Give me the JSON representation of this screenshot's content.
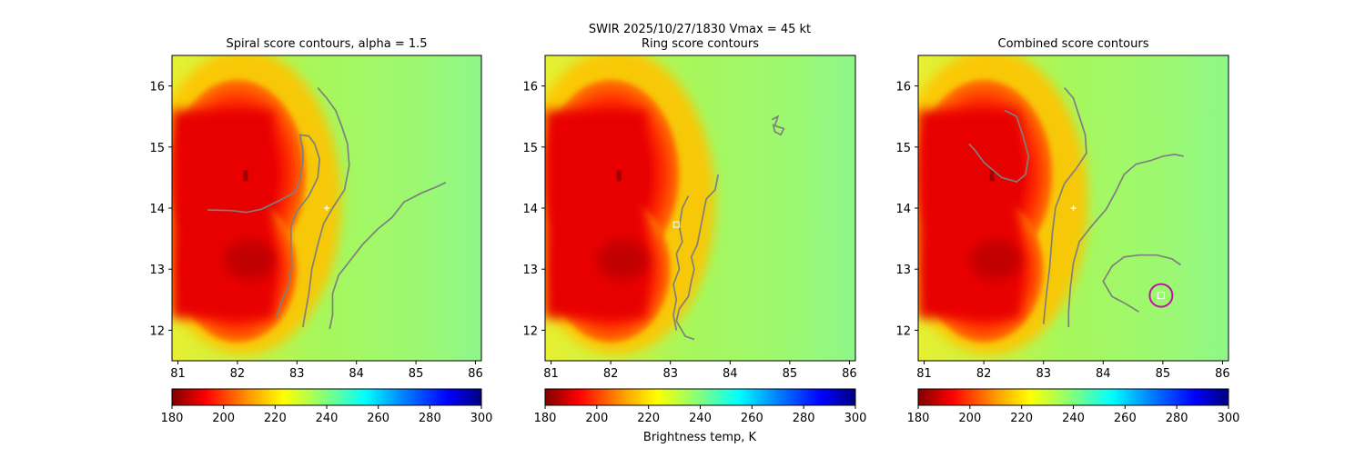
{
  "figure": {
    "suptitle_line": "SWIR  2025/10/27/1830    Vmax = 45 kt",
    "colorbar_label": "Brightness temp, K"
  },
  "chart_data": [
    {
      "type": "heatmap",
      "title": "Spiral score contours, alpha =  1.5",
      "xlim": [
        80.9,
        86.1
      ],
      "ylim": [
        11.5,
        16.5
      ],
      "xticks": [
        81,
        82,
        83,
        84,
        85,
        86
      ],
      "yticks": [
        12,
        13,
        14,
        15,
        16
      ],
      "center_marker": {
        "x": 83.5,
        "y": 14.0,
        "symbol": "+"
      },
      "contours": [
        [
          [
            81.5,
            13.97
          ],
          [
            81.9,
            13.96
          ],
          [
            82.15,
            13.93
          ],
          [
            82.4,
            13.98
          ],
          [
            82.7,
            14.12
          ],
          [
            82.95,
            14.25
          ],
          [
            83.05,
            14.45
          ],
          [
            83.1,
            14.75
          ],
          [
            83.1,
            14.95
          ],
          [
            83.05,
            15.2
          ],
          [
            83.2,
            15.18
          ],
          [
            83.3,
            15.05
          ],
          [
            83.38,
            14.8
          ],
          [
            83.35,
            14.5
          ],
          [
            83.2,
            14.2
          ],
          [
            83.0,
            13.95
          ],
          [
            82.9,
            13.7
          ],
          [
            82.9,
            13.4
          ],
          [
            82.9,
            13.0
          ],
          [
            82.85,
            12.7
          ],
          [
            82.75,
            12.5
          ],
          [
            82.65,
            12.2
          ]
        ],
        [
          [
            83.35,
            15.97
          ],
          [
            83.5,
            15.8
          ],
          [
            83.65,
            15.6
          ],
          [
            83.75,
            15.35
          ],
          [
            83.85,
            15.05
          ],
          [
            83.88,
            14.7
          ],
          [
            83.8,
            14.3
          ],
          [
            83.6,
            14.0
          ],
          [
            83.45,
            13.75
          ],
          [
            83.35,
            13.4
          ],
          [
            83.25,
            13.0
          ],
          [
            83.2,
            12.6
          ],
          [
            83.1,
            12.05
          ]
        ],
        [
          [
            85.5,
            14.42
          ],
          [
            85.35,
            14.35
          ],
          [
            85.1,
            14.25
          ],
          [
            84.8,
            14.1
          ],
          [
            84.6,
            13.85
          ],
          [
            84.35,
            13.65
          ],
          [
            84.1,
            13.4
          ],
          [
            83.9,
            13.15
          ],
          [
            83.7,
            12.9
          ],
          [
            83.6,
            12.6
          ],
          [
            83.6,
            12.25
          ],
          [
            83.55,
            12.02
          ]
        ]
      ]
    },
    {
      "type": "heatmap",
      "title": "Ring score contours",
      "xlim": [
        80.9,
        86.1
      ],
      "ylim": [
        11.5,
        16.5
      ],
      "xticks": [
        81,
        82,
        83,
        84,
        85,
        86
      ],
      "yticks": [
        12,
        13,
        14,
        15,
        16
      ],
      "center_marker": {
        "x": 83.1,
        "y": 13.73,
        "symbol": "□"
      },
      "contours": [
        [
          [
            83.8,
            14.55
          ],
          [
            83.75,
            14.3
          ],
          [
            83.6,
            14.15
          ],
          [
            83.55,
            13.9
          ],
          [
            83.5,
            13.65
          ],
          [
            83.45,
            13.4
          ],
          [
            83.35,
            13.2
          ],
          [
            83.4,
            13.0
          ],
          [
            83.35,
            12.8
          ],
          [
            83.3,
            12.55
          ],
          [
            83.15,
            12.35
          ],
          [
            83.1,
            12.15
          ],
          [
            83.25,
            11.9
          ],
          [
            83.4,
            11.85
          ]
        ],
        [
          [
            83.3,
            14.2
          ],
          [
            83.2,
            14.0
          ],
          [
            83.15,
            13.7
          ],
          [
            83.2,
            13.45
          ],
          [
            83.1,
            13.25
          ],
          [
            83.15,
            13.0
          ],
          [
            83.05,
            12.75
          ],
          [
            83.1,
            12.5
          ],
          [
            83.05,
            12.25
          ],
          [
            83.1,
            12.0
          ]
        ],
        [
          [
            84.7,
            15.45
          ],
          [
            84.8,
            15.5
          ],
          [
            84.75,
            15.35
          ],
          [
            84.9,
            15.3
          ],
          [
            84.85,
            15.2
          ],
          [
            84.75,
            15.25
          ],
          [
            84.72,
            15.38
          ]
        ]
      ]
    },
    {
      "type": "heatmap",
      "title": "Combined score contours",
      "xlim": [
        80.9,
        86.1
      ],
      "ylim": [
        11.5,
        16.5
      ],
      "xticks": [
        81,
        82,
        83,
        84,
        85,
        86
      ],
      "yticks": [
        12,
        13,
        14,
        15,
        16
      ],
      "center_marker": {
        "x": 83.5,
        "y": 14.0,
        "symbol": "+"
      },
      "best_estimate": {
        "x": 84.97,
        "y": 12.57
      },
      "contours": [
        [
          [
            82.35,
            15.6
          ],
          [
            82.55,
            15.5
          ],
          [
            82.65,
            15.2
          ],
          [
            82.75,
            14.85
          ],
          [
            82.7,
            14.55
          ],
          [
            82.55,
            14.43
          ],
          [
            82.3,
            14.5
          ],
          [
            82.0,
            14.75
          ],
          [
            81.85,
            14.95
          ],
          [
            81.75,
            15.05
          ]
        ],
        [
          [
            83.35,
            15.97
          ],
          [
            83.5,
            15.8
          ],
          [
            83.6,
            15.5
          ],
          [
            83.7,
            15.2
          ],
          [
            83.72,
            14.9
          ],
          [
            83.55,
            14.65
          ],
          [
            83.35,
            14.4
          ],
          [
            83.2,
            14.0
          ],
          [
            83.15,
            13.6
          ],
          [
            83.1,
            13.0
          ],
          [
            83.05,
            12.6
          ],
          [
            83.0,
            12.1
          ]
        ],
        [
          [
            85.35,
            14.85
          ],
          [
            85.2,
            14.88
          ],
          [
            85.0,
            14.85
          ],
          [
            84.8,
            14.78
          ],
          [
            84.55,
            14.72
          ],
          [
            84.35,
            14.55
          ],
          [
            84.2,
            14.25
          ],
          [
            84.05,
            13.98
          ],
          [
            83.8,
            13.7
          ],
          [
            83.6,
            13.45
          ],
          [
            83.5,
            13.1
          ],
          [
            83.45,
            12.7
          ],
          [
            83.42,
            12.3
          ],
          [
            83.42,
            12.05
          ]
        ],
        [
          [
            85.3,
            13.07
          ],
          [
            85.15,
            13.17
          ],
          [
            84.9,
            13.23
          ],
          [
            84.6,
            13.23
          ],
          [
            84.35,
            13.2
          ],
          [
            84.15,
            13.05
          ],
          [
            84.0,
            12.8
          ],
          [
            84.15,
            12.55
          ],
          [
            84.35,
            12.45
          ],
          [
            84.6,
            12.3
          ]
        ]
      ]
    }
  ],
  "colorbar": {
    "range": [
      180,
      300
    ],
    "ticks": [
      "180",
      "200",
      "220",
      "240",
      "260",
      "280",
      "300"
    ],
    "colormap": "jet_r"
  },
  "colors": {
    "contour": "#7f7f7f",
    "best_estimate_circle": "#bf14a0",
    "marker": "#ffffff"
  }
}
